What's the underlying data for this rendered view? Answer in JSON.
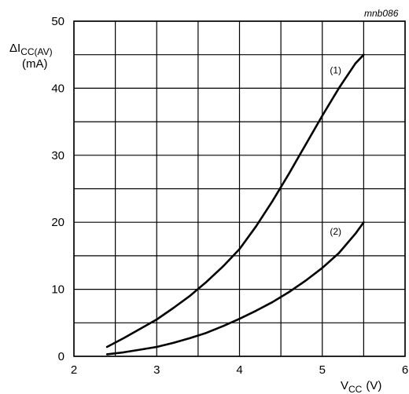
{
  "figure_id": "mnb086",
  "chart_data": {
    "type": "line",
    "ylabel": "ΔI",
    "ylabel_sub": "CC(AV)",
    "ylabel_unit": "(mA)",
    "xlabel": "V",
    "xlabel_sub": "CC",
    "xlabel_unit": "(V)",
    "xlim": [
      2,
      6
    ],
    "ylim": [
      0,
      50
    ],
    "xticks": [
      2,
      3,
      4,
      5,
      6
    ],
    "yticks": [
      0,
      10,
      20,
      30,
      40,
      50
    ],
    "grid": true,
    "series": [
      {
        "name": "(1)",
        "color": "#000000",
        "x": [
          2.4,
          2.6,
          2.8,
          3.0,
          3.2,
          3.4,
          3.6,
          3.8,
          4.0,
          4.2,
          4.4,
          4.6,
          4.8,
          5.0,
          5.2,
          5.4,
          5.5
        ],
        "y": [
          1.4,
          2.7,
          4.1,
          5.5,
          7.2,
          9.0,
          11.1,
          13.4,
          16.0,
          19.4,
          23.2,
          27.3,
          31.6,
          35.9,
          40.0,
          43.7,
          45.0
        ]
      },
      {
        "name": "(2)",
        "color": "#000000",
        "x": [
          2.4,
          2.6,
          2.8,
          3.0,
          3.2,
          3.4,
          3.6,
          3.8,
          4.0,
          4.2,
          4.4,
          4.6,
          4.8,
          5.0,
          5.2,
          5.4,
          5.5
        ],
        "y": [
          0.3,
          0.6,
          1.0,
          1.4,
          2.0,
          2.7,
          3.5,
          4.5,
          5.6,
          6.8,
          8.1,
          9.6,
          11.3,
          13.2,
          15.4,
          18.3,
          20.0
        ]
      }
    ]
  }
}
